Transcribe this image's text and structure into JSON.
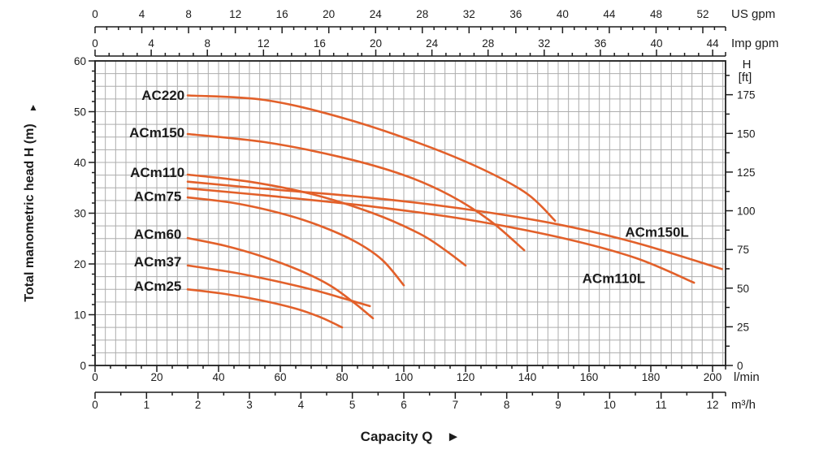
{
  "chart_data": {
    "type": "line",
    "title": "",
    "x_label": {
      "text": "Capacity Q",
      "arrow": "►"
    },
    "y_axis_left": {
      "title": "Total manometric head H (m)",
      "arrow": "▲",
      "majors": [
        0,
        10,
        20,
        30,
        40,
        50,
        60
      ],
      "minor_step": 2
    },
    "y_axis_right": {
      "unit_line1": "H",
      "unit_line2": "[ft]",
      "majors": [
        0,
        25,
        50,
        75,
        100,
        125,
        150,
        175
      ],
      "minor_step": 12.5,
      "minor_max": 187.5
    },
    "x_axis_top_us": {
      "unit": "US gpm",
      "majors": [
        0,
        4,
        8,
        12,
        16,
        20,
        24,
        28,
        32,
        36,
        40,
        44,
        48,
        52
      ],
      "minor_step": 1,
      "minor_max": 53
    },
    "x_axis_top_imp": {
      "unit": "Imp gpm",
      "majors": [
        0,
        4,
        8,
        12,
        16,
        20,
        24,
        28,
        32,
        36,
        40,
        44
      ],
      "minor_step": 1,
      "minor_max": 44
    },
    "x_axis_bottom_lmin": {
      "unit": "l/min",
      "majors": [
        0,
        20,
        40,
        60,
        80,
        100,
        120,
        140,
        160,
        180,
        200
      ],
      "minor_step": 5,
      "minor_max": 200
    },
    "x_axis_bottom_m3h": {
      "unit": "m³/h",
      "majors": [
        0,
        1,
        2,
        3,
        4,
        5,
        6,
        7,
        8,
        9,
        10,
        11,
        12
      ],
      "minor_step": 0.5,
      "minor_max": 12
    },
    "x_range_lmin": [
      0,
      204
    ],
    "y_range_m": [
      0,
      60
    ],
    "grid": {
      "x_step_lmin": 3.3333,
      "y_step_m": 2.5,
      "on": true
    },
    "legend_position": "inline-labels",
    "series": [
      {
        "name": "AC220",
        "points": [
          [
            30,
            53.2
          ],
          [
            55,
            52.3
          ],
          [
            80,
            48.8
          ],
          [
            105,
            43.8
          ],
          [
            125,
            38.8
          ],
          [
            140,
            33.8
          ],
          [
            149,
            28.5
          ]
        ],
        "label_at": [
          29,
          53.3
        ],
        "anchor": "end"
      },
      {
        "name": "ACm150",
        "points": [
          [
            30,
            45.6
          ],
          [
            55,
            44.0
          ],
          [
            80,
            41.0
          ],
          [
            100,
            37.5
          ],
          [
            115,
            33.5
          ],
          [
            128,
            28.5
          ],
          [
            139,
            22.7
          ]
        ],
        "label_at": [
          29,
          45.9
        ],
        "anchor": "end"
      },
      {
        "name": "ACm110",
        "points": [
          [
            30,
            37.6
          ],
          [
            50,
            36.2
          ],
          [
            70,
            33.8
          ],
          [
            90,
            30.0
          ],
          [
            105,
            26.0
          ],
          [
            113,
            22.9
          ],
          [
            120,
            19.7
          ]
        ],
        "label_at": [
          29,
          38.1
        ],
        "anchor": "end"
      },
      {
        "name": "ACm150L",
        "points": [
          [
            30,
            36.2
          ],
          [
            55,
            34.8
          ],
          [
            90,
            33.0
          ],
          [
            120,
            30.8
          ],
          [
            150,
            27.8
          ],
          [
            175,
            24.2
          ],
          [
            203,
            19.0
          ]
        ],
        "label_at": [
          182,
          26.3
        ],
        "anchor": "middle"
      },
      {
        "name": "ACm110L",
        "points": [
          [
            30,
            34.9
          ],
          [
            55,
            33.5
          ],
          [
            90,
            31.3
          ],
          [
            120,
            28.8
          ],
          [
            150,
            25.3
          ],
          [
            175,
            21.2
          ],
          [
            194,
            16.3
          ]
        ],
        "label_at": [
          168,
          17.2
        ],
        "anchor": "middle"
      },
      {
        "name": "ACm75",
        "points": [
          [
            30,
            33.1
          ],
          [
            45,
            32.0
          ],
          [
            60,
            30.0
          ],
          [
            72,
            27.7
          ],
          [
            84,
            24.5
          ],
          [
            93,
            20.8
          ],
          [
            100,
            15.8
          ]
        ],
        "label_at": [
          28,
          33.4
        ],
        "anchor": "end"
      },
      {
        "name": "ACm60",
        "points": [
          [
            30,
            25.1
          ],
          [
            42,
            23.6
          ],
          [
            54,
            21.5
          ],
          [
            66,
            18.8
          ],
          [
            76,
            15.8
          ],
          [
            84,
            12.3
          ],
          [
            90,
            9.3
          ]
        ],
        "label_at": [
          28,
          25.9
        ],
        "anchor": "end"
      },
      {
        "name": "ACm37",
        "points": [
          [
            30,
            19.7
          ],
          [
            45,
            18.3
          ],
          [
            58,
            16.7
          ],
          [
            70,
            15.0
          ],
          [
            80,
            13.3
          ],
          [
            89,
            11.7
          ]
        ],
        "label_at": [
          28,
          20.5
        ],
        "anchor": "end"
      },
      {
        "name": "ACm25",
        "points": [
          [
            30,
            15.0
          ],
          [
            42,
            14.1
          ],
          [
            54,
            12.8
          ],
          [
            65,
            11.2
          ],
          [
            73,
            9.5
          ],
          [
            80,
            7.5
          ]
        ],
        "label_at": [
          28,
          15.7
        ],
        "anchor": "end"
      }
    ],
    "style": {
      "curve_color": "#e2602a",
      "grid_color": "#adadad",
      "axis_color": "#1c1c1c",
      "text_color": "#1c1c1c"
    }
  }
}
